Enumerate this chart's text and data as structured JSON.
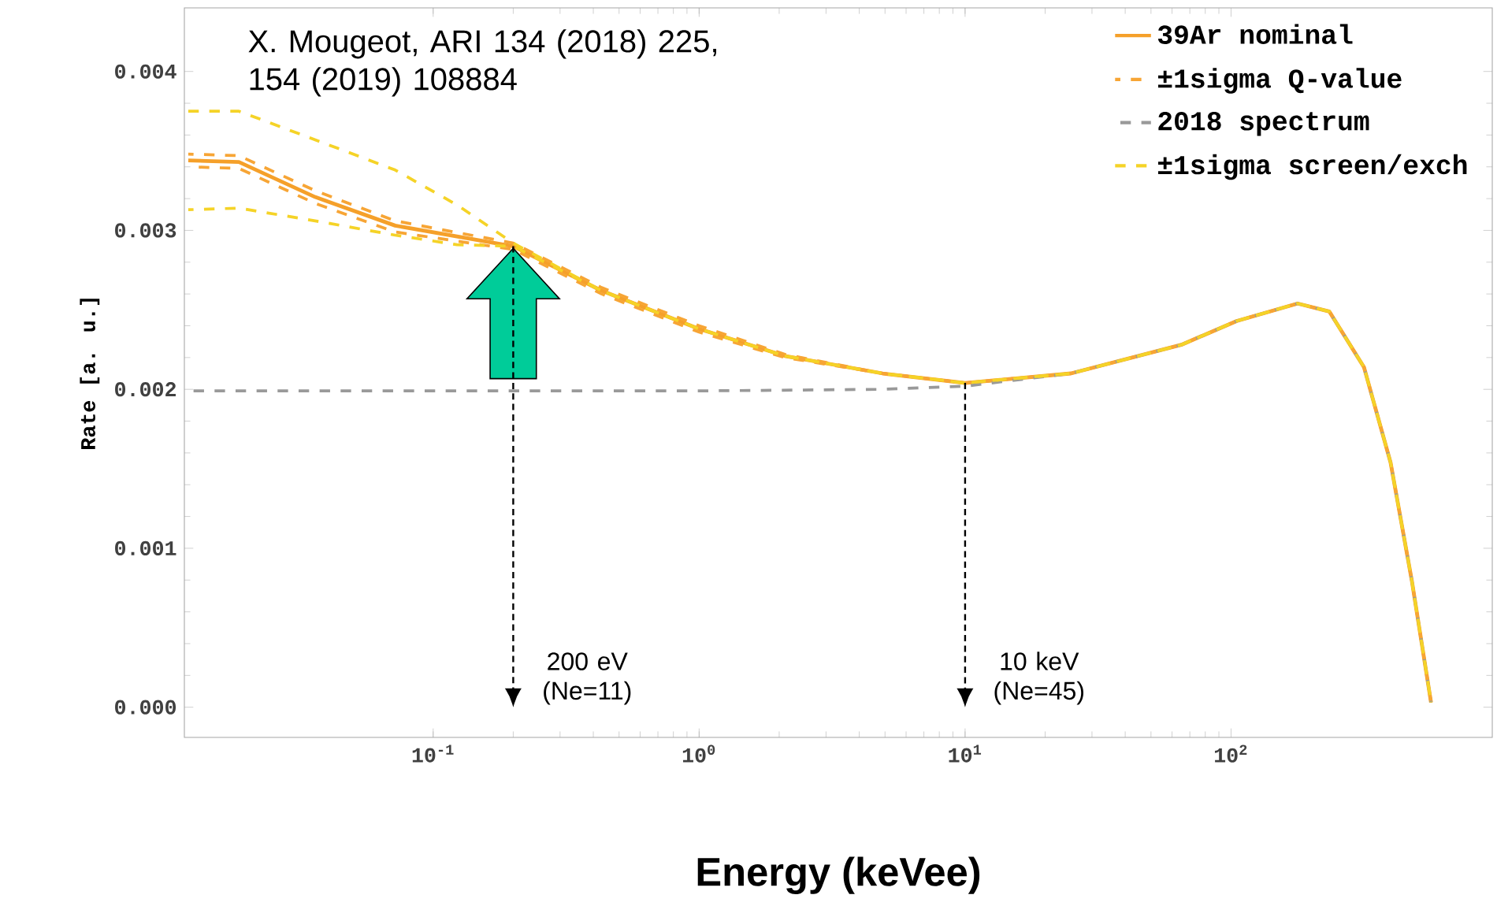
{
  "chart_data": {
    "type": "line",
    "xlabel": "Energy (keVee)",
    "ylabel": "Rate [a. u.]",
    "log": "x",
    "xlim": [
      0.0116,
      960
    ],
    "ylim": [
      -0.00019,
      0.0044
    ],
    "xticks": [
      {
        "value": 0.1,
        "label": "10$^{-1}$"
      },
      {
        "value": 1,
        "label": "10$^{0}$"
      },
      {
        "value": 10,
        "label": "10$^{1}$"
      },
      {
        "value": 100,
        "label": "10$^{2}$"
      }
    ],
    "yticks": [
      {
        "value": 0,
        "label": "0.000"
      },
      {
        "value": 0.001,
        "label": "0.001"
      },
      {
        "value": 0.002,
        "label": "0.002"
      },
      {
        "value": 0.003,
        "label": "0.003"
      },
      {
        "value": 0.004,
        "label": "0.004"
      }
    ],
    "legend": "top right",
    "series": [
      {
        "name": "39Ar nominal",
        "color": "#f5a02a",
        "line_style": "solid",
        "x": [
          0.012,
          0.0186,
          0.036,
          0.072,
          0.2,
          0.43,
          1,
          2.1,
          4.9,
          10,
          25,
          65,
          105,
          178,
          234,
          316,
          398,
          479,
          565
        ],
        "values": [
          0.00344,
          0.00343,
          0.00321,
          0.00303,
          0.0029,
          0.00262,
          0.00238,
          0.00221,
          0.0021,
          0.00204,
          0.0021,
          0.00228,
          0.00243,
          0.00254,
          0.00249,
          0.00214,
          0.00154,
          0.00079,
          3e-05
        ]
      },
      {
        "name": "±1sigma Q-value",
        "color": "#f7a535",
        "line_style": "dashed",
        "x": [
          0.012,
          0.0186,
          0.036,
          0.072,
          0.2,
          0.43,
          1,
          2.1,
          4.9,
          10,
          25,
          65,
          105,
          178,
          234,
          316,
          398,
          479,
          565
        ],
        "values": [
          0.00348,
          0.00347,
          0.00325,
          0.00306,
          0.00292,
          0.00264,
          0.0024,
          0.00222,
          0.0021,
          0.00204,
          0.0021,
          0.00228,
          0.00243,
          0.00254,
          0.00249,
          0.00214,
          0.00154,
          0.00079,
          3e-05
        ]
      },
      {
        "color": "#f7a535",
        "line_style": "dashed",
        "x": [
          0.012,
          0.0186,
          0.036,
          0.072,
          0.2,
          0.43,
          1,
          2.1,
          4.9,
          10,
          25,
          65,
          105,
          178,
          234,
          316,
          398,
          479,
          565
        ],
        "values": [
          0.0034,
          0.00339,
          0.00317,
          0.00299,
          0.00288,
          0.0026,
          0.00236,
          0.0022,
          0.0021,
          0.00204,
          0.0021,
          0.00228,
          0.00243,
          0.00254,
          0.00249,
          0.00214,
          0.00154,
          0.00079,
          3e-05
        ]
      },
      {
        "name": "2018 spectrum",
        "color": "#999999",
        "line_style": "dashed",
        "x": [
          0.012,
          0.2,
          1,
          4.9,
          10,
          25,
          65,
          105,
          178,
          234,
          316,
          398,
          479,
          565
        ],
        "values": [
          0.00199,
          0.00199,
          0.00199,
          0.002,
          0.00202,
          0.0021,
          0.00228,
          0.00243,
          0.00254,
          0.00249,
          0.00214,
          0.00154,
          0.00079,
          3e-05
        ]
      },
      {
        "name": "±1sigma screen/exch",
        "color": "#f5d327",
        "line_style": "dashed",
        "x": [
          0.012,
          0.0186,
          0.036,
          0.072,
          0.123,
          0.2,
          0.43,
          1,
          2.1,
          4.9,
          10,
          25,
          65,
          105,
          178,
          234,
          316,
          398,
          479,
          565
        ],
        "values": [
          0.00375,
          0.00375,
          0.00357,
          0.00338,
          0.00316,
          0.00292,
          0.00262,
          0.00238,
          0.00221,
          0.0021,
          0.00204,
          0.0021,
          0.00228,
          0.00243,
          0.00254,
          0.00249,
          0.00214,
          0.00154,
          0.00079,
          3e-05
        ]
      },
      {
        "color": "#f5d327",
        "line_style": "dashed",
        "x": [
          0.012,
          0.0186,
          0.036,
          0.072,
          0.123,
          0.2,
          0.43,
          1,
          2.1,
          4.9,
          10,
          25,
          65,
          105,
          178,
          234,
          316,
          398,
          479,
          565
        ],
        "values": [
          0.00313,
          0.00314,
          0.00306,
          0.00297,
          0.00291,
          0.0029,
          0.00262,
          0.00238,
          0.00221,
          0.0021,
          0.00204,
          0.0021,
          0.00228,
          0.00243,
          0.00254,
          0.00249,
          0.00214,
          0.00154,
          0.00079,
          3e-05
        ]
      }
    ],
    "ref_lines": [
      {
        "axis": "x",
        "value": 0.2,
        "label": "200 eV (Ne=11)",
        "line_style": "dashed",
        "color": "#000000"
      },
      {
        "axis": "x",
        "value": 10,
        "label": "10 keV (Ne=45)",
        "line_style": "dashed",
        "color": "#000000"
      }
    ],
    "annotations": [
      "X. Mougeot, ARI 134 (2018) 225, 154 (2019) 108884"
    ]
  }
}
